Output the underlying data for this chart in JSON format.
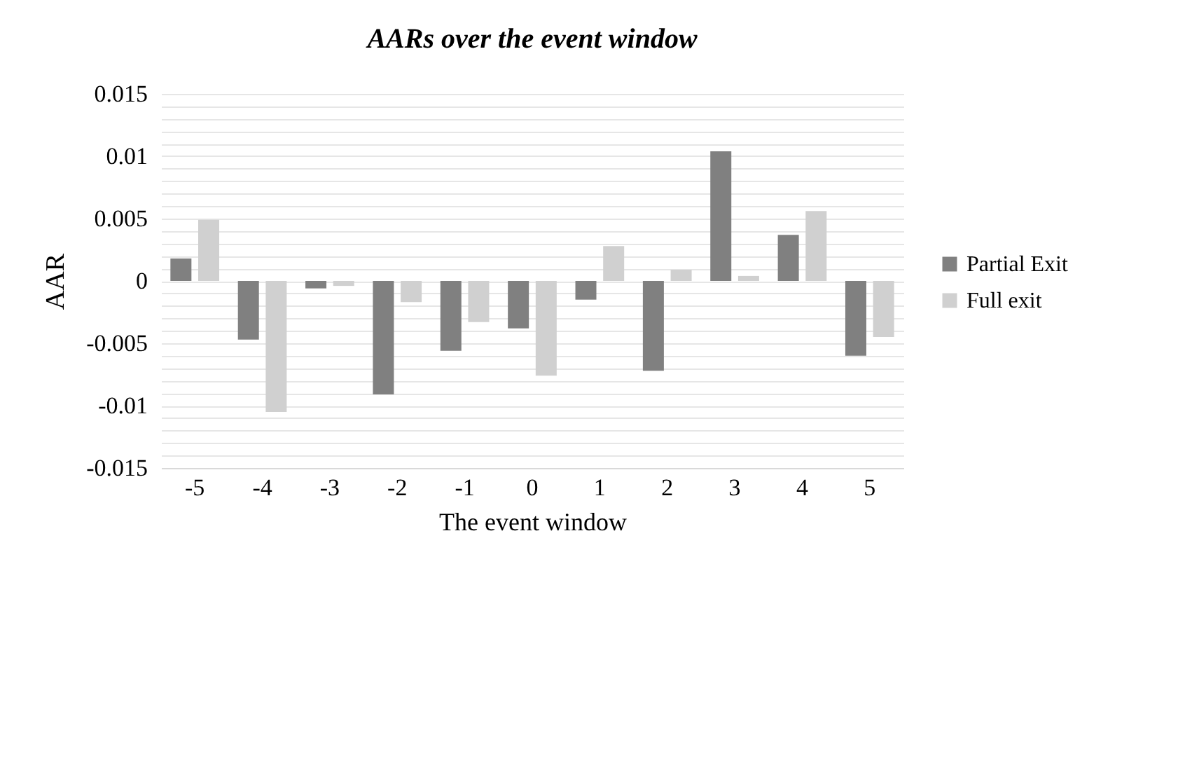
{
  "chart_data": {
    "type": "bar",
    "title": "AARs over the event window",
    "xlabel": "The event window",
    "ylabel": "AAR",
    "categories": [
      "-5",
      "-4",
      "-3",
      "-2",
      "-1",
      "0",
      "1",
      "2",
      "3",
      "4",
      "5"
    ],
    "series": [
      {
        "name": "Partial Exit",
        "color": "#808080",
        "values": [
          0.0018,
          -0.0047,
          -0.0006,
          -0.0091,
          -0.0056,
          -0.0038,
          -0.0015,
          -0.0072,
          0.0104,
          0.0037,
          -0.006
        ]
      },
      {
        "name": "Full exit",
        "color": "#d0d0d0",
        "values": [
          0.0049,
          -0.0105,
          -0.0004,
          -0.0017,
          -0.0033,
          -0.0076,
          0.0028,
          0.0009,
          0.0004,
          0.0056,
          -0.0045
        ]
      }
    ],
    "ylim": [
      -0.015,
      0.015
    ],
    "yticks": [
      -0.015,
      {
        "value": -0.014,
        "label": null
      },
      {
        "value": -0.013,
        "label": null
      },
      {
        "value": -0.012,
        "label": null
      },
      {
        "value": -0.011,
        "label": null
      },
      -0.01,
      {
        "value": -0.009,
        "label": null
      },
      {
        "value": -0.008,
        "label": null
      },
      {
        "value": -0.007,
        "label": null
      },
      {
        "value": -0.006,
        "label": null
      },
      -0.005,
      {
        "value": -0.004,
        "label": null
      },
      {
        "value": -0.003,
        "label": null
      },
      {
        "value": -0.002,
        "label": null
      },
      {
        "value": -0.001,
        "label": null
      },
      0,
      {
        "value": 0.001,
        "label": null
      },
      {
        "value": 0.002,
        "label": null
      },
      {
        "value": 0.003,
        "label": null
      },
      {
        "value": 0.004,
        "label": null
      },
      0.005,
      {
        "value": 0.006,
        "label": null
      },
      {
        "value": 0.007,
        "label": null
      },
      {
        "value": 0.008,
        "label": null
      },
      {
        "value": 0.009,
        "label": null
      },
      0.01,
      {
        "value": 0.011,
        "label": null
      },
      {
        "value": 0.012,
        "label": null
      },
      {
        "value": 0.013,
        "label": null
      },
      {
        "value": 0.014,
        "label": null
      },
      0.015
    ],
    "grid": "y",
    "legend": "right"
  }
}
